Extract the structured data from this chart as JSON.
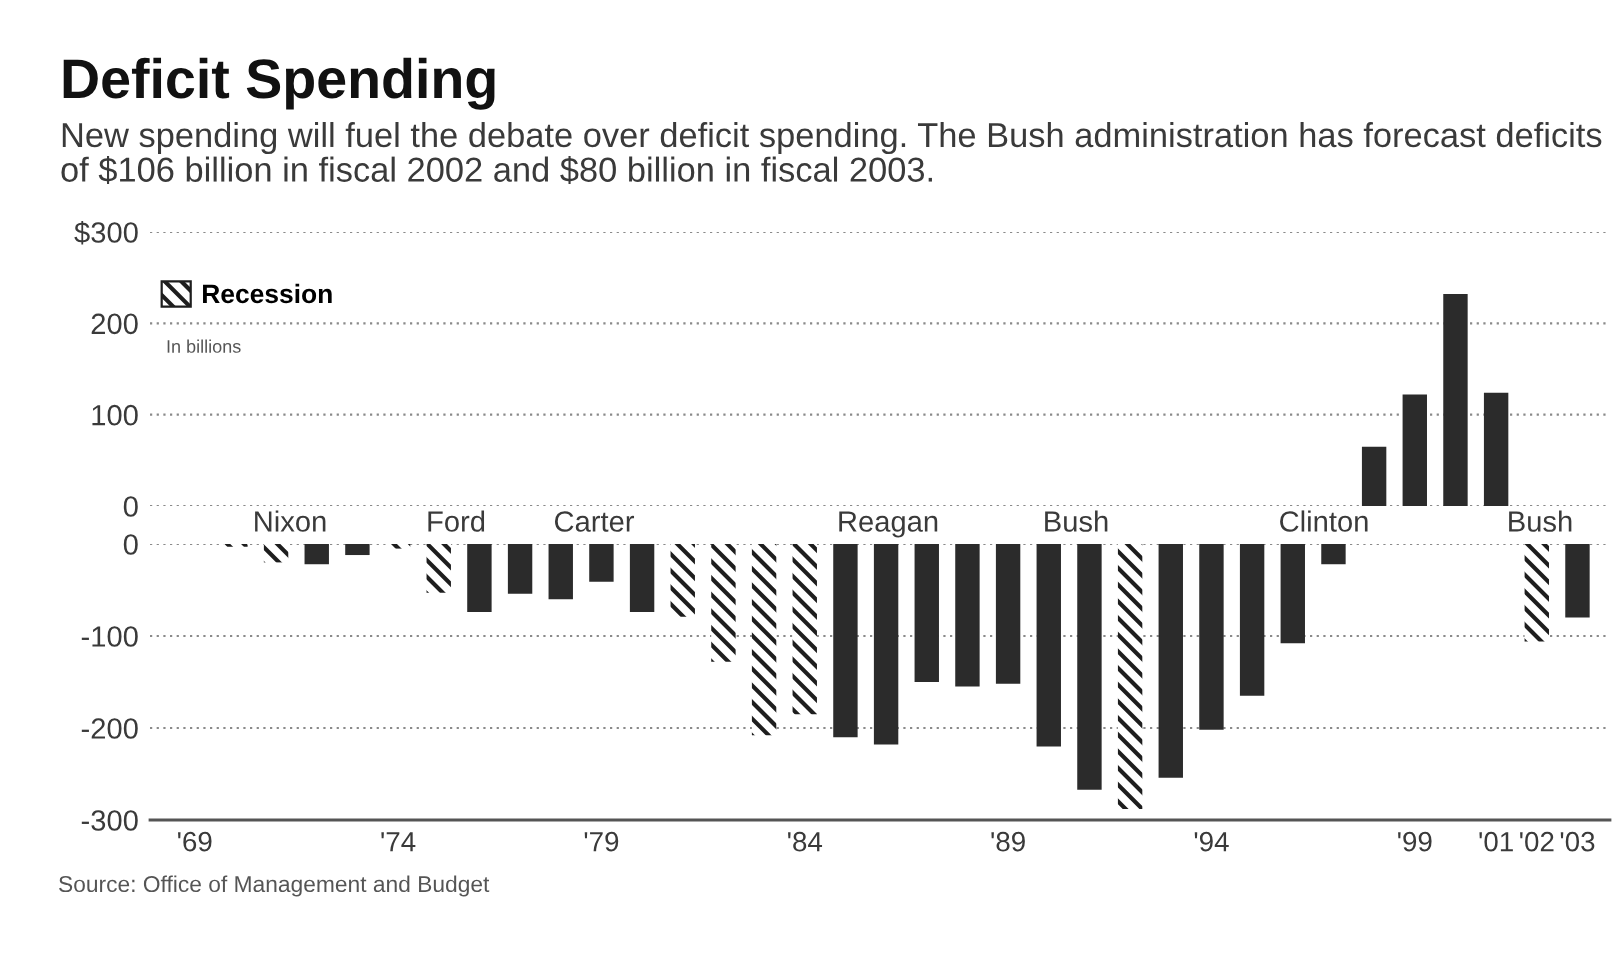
{
  "chart_data": [
    {
      "type": "bar",
      "title": "Deficit Spending",
      "subtitle": "New spending will fuel the debate over deficit spending. The Bush administration has forecast deficits of $106 billion in fiscal 2002 and $80 billion in fiscal 2003.",
      "categories": [
        null,
        null,
        null,
        null,
        null,
        null,
        null,
        null,
        null,
        null,
        null,
        null,
        null,
        null,
        null,
        null,
        null,
        null,
        null,
        null,
        null,
        null,
        null,
        null,
        null,
        null,
        null,
        null,
        null,
        null,
        null,
        null,
        null,
        null,
        null
      ],
      "ylim": [
        0,
        300
      ],
      "yticks": [
        0,
        100,
        200,
        {
          "value": 300,
          "label": "$300"
        }
      ],
      "tick_labels": "y",
      "grid": "y",
      "legend": "top left",
      "annotations": [
        "In billions"
      ],
      "series": [
        {
          "color": "#2b2b2b",
          "values": [
            null,
            null,
            null,
            null,
            null,
            null,
            null,
            null,
            null,
            null,
            null,
            null,
            null,
            null,
            null,
            null,
            null,
            null,
            null,
            null,
            null,
            null,
            null,
            null,
            null,
            null,
            null,
            null,
            null,
            65,
            122,
            232,
            124,
            null,
            null
          ]
        },
        {
          "name": "Recession",
          "color": "#1e1e1e",
          "values": [
            null,
            null,
            null,
            null,
            null,
            null,
            null,
            null,
            null,
            null,
            null,
            null,
            null,
            null,
            null,
            null,
            null,
            null,
            null,
            null,
            null,
            null,
            null,
            null,
            null,
            null,
            null,
            null,
            null,
            null,
            null,
            null,
            null,
            null,
            null
          ]
        }
      ]
    },
    {
      "type": "bar",
      "categories": [
        "'69",
        null,
        null,
        null,
        null,
        "'74",
        null,
        null,
        null,
        null,
        "'79",
        null,
        null,
        null,
        null,
        "'84",
        null,
        null,
        null,
        null,
        "'89",
        null,
        null,
        null,
        null,
        "'94",
        null,
        null,
        null,
        null,
        "'99",
        null,
        "'01",
        "'02",
        "'03"
      ],
      "ylim": [
        -300,
        0
      ],
      "yticks": [
        -300,
        -200,
        -100,
        0
      ],
      "grid": "y",
      "annotations": [
        "Nixon",
        "Ford",
        "Carter",
        "Reagan",
        "Bush",
        "Clinton",
        "Bush",
        "Source: Office of Management and Budget"
      ],
      "series": [
        {
          "color": "#2b2b2b",
          "values": [
            null,
            null,
            null,
            -22,
            -12,
            null,
            null,
            -74,
            -54,
            -60,
            -41,
            -74,
            null,
            null,
            null,
            null,
            -210,
            -218,
            -150,
            -155,
            -152,
            -220,
            -267,
            null,
            -254,
            -202,
            -165,
            -108,
            -22,
            null,
            null,
            null,
            null,
            null,
            -80
          ]
        },
        {
          "color": "#1e1e1e",
          "values": [
            null,
            -3,
            -20,
            null,
            null,
            -5,
            -53,
            null,
            null,
            null,
            null,
            null,
            -79,
            -128,
            -208,
            -185,
            null,
            null,
            null,
            null,
            null,
            null,
            null,
            -288,
            null,
            null,
            null,
            null,
            null,
            null,
            null,
            null,
            null,
            -106,
            null
          ]
        }
      ]
    }
  ]
}
